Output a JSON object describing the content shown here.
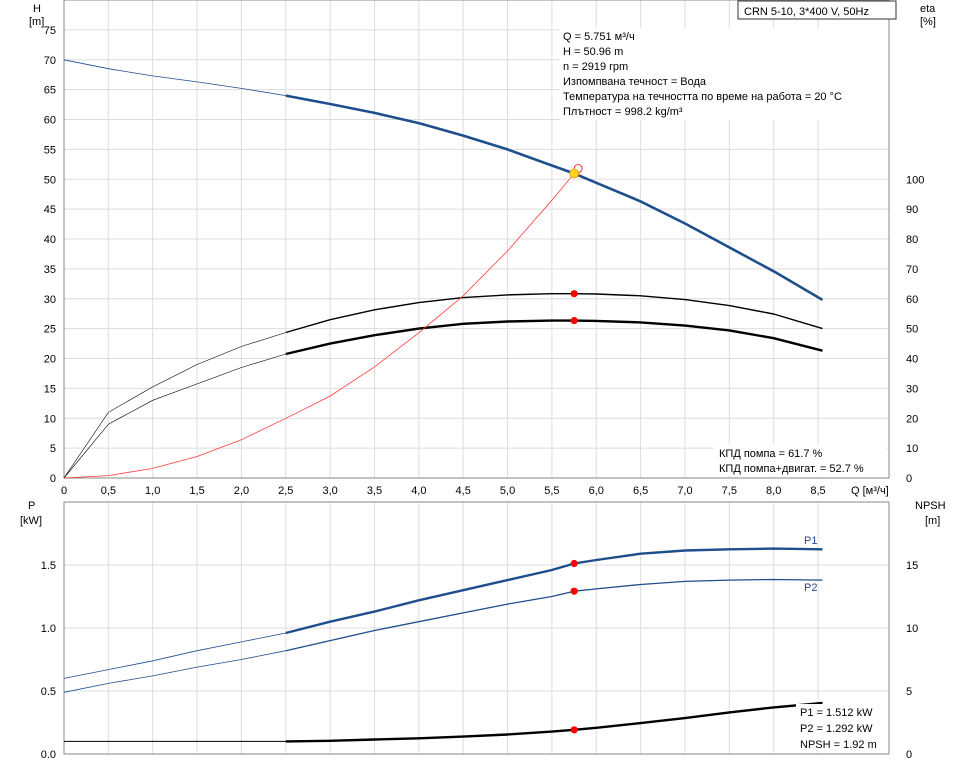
{
  "model": "CRN 5-10, 3*400 V, 50Hz",
  "top": {
    "ylabel_left": [
      "H",
      "[m]"
    ],
    "ylabel_right": [
      "eta",
      "[%]"
    ],
    "xlabel": "Q [м³/ч]",
    "info_lines": [
      "Q = 5.751 м³/ч",
      "H = 50.96 m",
      "n = 2919 rpm",
      "Изпомпвана течност = Вода",
      "Температура на течността по време на работа = 20 °C",
      "Плътност = 998.2 kg/m³"
    ],
    "eff_lines": [
      "КПД помпа = 61.7 %",
      "КПД помпа+двигат. = 52.7 %"
    ]
  },
  "bottom": {
    "ylabel_left": [
      "P",
      "[kW]"
    ],
    "ylabel_right": [
      "NPSH",
      "[m]"
    ],
    "info_lines": [
      "P1 = 1.512 kW",
      "P2 = 1.292 kW",
      "NPSH = 1.92 m"
    ]
  },
  "colors": {
    "head": "#1f4e8c",
    "power": "#1f4e8c",
    "efficiency": "#000000",
    "system": "#ff3b3b",
    "npsh": "#000000",
    "point": "#ff0000",
    "duty_point": "#ffd21e",
    "grid": "#dddddd"
  },
  "chart_data": [
    {
      "type": "line",
      "x_ticks": [
        "0",
        "0,5",
        "1,0",
        "1,5",
        "2,0",
        "2,5",
        "3,0",
        "3,5",
        "4,0",
        "4,5",
        "5,0",
        "5,5",
        "6,0",
        "6,5",
        "7,0",
        "7,5",
        "8,0",
        "8,5"
      ],
      "xlim": [
        0,
        9.3
      ],
      "y_ticks_left": [
        "0",
        "5",
        "10",
        "15",
        "20",
        "25",
        "30",
        "35",
        "40",
        "45",
        "50",
        "55",
        "60",
        "65",
        "70",
        "75"
      ],
      "ylim_left": [
        0,
        80
      ],
      "y_ticks_right": [
        "0",
        "10",
        "20",
        "30",
        "40",
        "50",
        "60",
        "70",
        "80",
        "90",
        "100"
      ],
      "ylim_right": [
        0,
        160
      ],
      "series": [
        {
          "key": "head",
          "axis": "left",
          "x": [
            0,
            0.5,
            1.0,
            1.5,
            2.0,
            2.5,
            3.0,
            3.5,
            4.0,
            4.5,
            5.0,
            5.5,
            5.751,
            6.0,
            6.5,
            7.0,
            7.5,
            8.0,
            8.55
          ],
          "y": [
            70,
            68.5,
            67.3,
            66.3,
            65.2,
            64.0,
            62.6,
            61.1,
            59.4,
            57.3,
            55.0,
            52.3,
            50.96,
            49.4,
            46.3,
            42.6,
            38.6,
            34.6,
            29.8
          ]
        },
        {
          "key": "eff_pump",
          "axis": "right",
          "x": [
            0,
            0.5,
            1.0,
            1.5,
            2.0,
            2.5,
            3.0,
            3.5,
            4.0,
            4.5,
            5.0,
            5.5,
            5.751,
            6.0,
            6.5,
            7.0,
            7.5,
            8.0,
            8.55
          ],
          "y": [
            0,
            22,
            30.5,
            38,
            44,
            48.7,
            53,
            56.3,
            58.7,
            60.4,
            61.3,
            61.7,
            61.7,
            61.6,
            61.0,
            59.7,
            57.7,
            54.9,
            50.0
          ]
        },
        {
          "key": "eff_total",
          "axis": "right",
          "x": [
            0,
            0.5,
            1.0,
            1.5,
            2.0,
            2.5,
            3.0,
            3.5,
            4.0,
            4.5,
            5.0,
            5.5,
            5.751,
            6.0,
            6.5,
            7.0,
            7.5,
            8.0,
            8.55
          ],
          "y": [
            0,
            18,
            26,
            31.5,
            37,
            41.5,
            45,
            47.8,
            50.0,
            51.6,
            52.4,
            52.7,
            52.7,
            52.6,
            52.1,
            51.0,
            49.4,
            46.8,
            42.6
          ]
        },
        {
          "key": "system",
          "axis": "left",
          "x": [
            0,
            0.5,
            1.0,
            1.5,
            2.0,
            2.5,
            3.0,
            3.5,
            4.0,
            4.5,
            5.0,
            5.5,
            5.751
          ],
          "y": [
            0,
            0.4,
            1.6,
            3.6,
            6.4,
            10.0,
            13.7,
            18.6,
            24.3,
            30.5,
            38.0,
            46.5,
            50.96
          ]
        }
      ],
      "points": [
        {
          "series": "head",
          "x": 5.751,
          "y": 50.96
        },
        {
          "series": "eff_pump",
          "x": 5.751,
          "y": 61.7
        },
        {
          "series": "eff_total",
          "x": 5.751,
          "y": 52.7
        }
      ]
    },
    {
      "type": "line",
      "x_ticks": [
        "0",
        "0,5",
        "1,0",
        "1,5",
        "2,0",
        "2,5",
        "3,0",
        "3,5",
        "4,0",
        "4,5",
        "5,0",
        "5,5",
        "6,0",
        "6,5",
        "7,0",
        "7,5",
        "8,0",
        "8,5"
      ],
      "xlim": [
        0,
        9.3
      ],
      "y_ticks_left": [
        "0.0",
        "0.5",
        "1.0",
        "1.5"
      ],
      "ylim_left": [
        0,
        2.0
      ],
      "y_ticks_right": [
        "0",
        "5",
        "10",
        "15"
      ],
      "ylim_right": [
        0,
        20
      ],
      "series": [
        {
          "name": "P1",
          "key": "p1",
          "axis": "left",
          "x": [
            0,
            0.5,
            1.0,
            1.5,
            2.0,
            2.5,
            3.0,
            3.5,
            4.0,
            4.5,
            5.0,
            5.5,
            5.751,
            6.0,
            6.5,
            7.0,
            7.5,
            8.0,
            8.55
          ],
          "y": [
            0.6,
            0.67,
            0.74,
            0.82,
            0.89,
            0.96,
            1.05,
            1.13,
            1.22,
            1.3,
            1.38,
            1.46,
            1.512,
            1.54,
            1.59,
            1.615,
            1.625,
            1.63,
            1.625
          ]
        },
        {
          "name": "P2",
          "key": "p2",
          "axis": "left",
          "x": [
            0,
            0.5,
            1.0,
            1.5,
            2.0,
            2.5,
            3.0,
            3.5,
            4.0,
            4.5,
            5.0,
            5.5,
            5.751,
            6.0,
            6.5,
            7.0,
            7.5,
            8.0,
            8.55
          ],
          "y": [
            0.49,
            0.56,
            0.62,
            0.69,
            0.75,
            0.82,
            0.9,
            0.98,
            1.05,
            1.12,
            1.19,
            1.25,
            1.292,
            1.31,
            1.345,
            1.37,
            1.38,
            1.385,
            1.38
          ]
        },
        {
          "key": "npsh",
          "axis": "right",
          "x": [
            0,
            0.5,
            1.0,
            1.5,
            2.0,
            2.5,
            3.0,
            3.5,
            4.0,
            4.5,
            5.0,
            5.5,
            5.751,
            6.0,
            6.5,
            7.0,
            7.5,
            8.0,
            8.55
          ],
          "y": [
            1.0,
            1.0,
            1.0,
            1.0,
            1.0,
            1.0,
            1.05,
            1.15,
            1.25,
            1.38,
            1.55,
            1.78,
            1.92,
            2.08,
            2.45,
            2.85,
            3.3,
            3.7,
            4.05
          ]
        }
      ],
      "points": [
        {
          "series": "p1",
          "x": 5.751,
          "y": 1.512
        },
        {
          "series": "p2",
          "x": 5.751,
          "y": 1.292
        },
        {
          "series": "npsh",
          "x": 5.751,
          "y": 1.92
        }
      ]
    }
  ]
}
